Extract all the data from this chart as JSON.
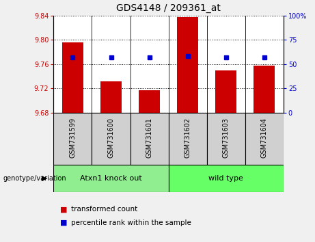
{
  "title": "GDS4148 / 209361_at",
  "samples": [
    "GSM731599",
    "GSM731600",
    "GSM731601",
    "GSM731602",
    "GSM731603",
    "GSM731604"
  ],
  "bar_values": [
    9.796,
    9.731,
    9.717,
    9.838,
    9.75,
    9.757
  ],
  "bar_bottom": 9.68,
  "percentile_values": [
    9.771,
    9.771,
    9.771,
    9.773,
    9.771,
    9.771
  ],
  "ylim_left": [
    9.68,
    9.84
  ],
  "yticks_left": [
    9.68,
    9.72,
    9.76,
    9.8,
    9.84
  ],
  "ytick_labels_left": [
    "9.68",
    "9.72",
    "9.76",
    "9.80",
    "9.84"
  ],
  "ylim_right": [
    0,
    100
  ],
  "yticks_right": [
    0,
    25,
    50,
    75,
    100
  ],
  "ytick_labels_right": [
    "0",
    "25",
    "50",
    "75",
    "100%"
  ],
  "bar_color": "#cc0000",
  "dot_color": "#0000cc",
  "group1_label": "Atxn1 knock out",
  "group2_label": "wild type",
  "group1_color": "#90ee90",
  "group2_color": "#66ff66",
  "group_label_prefix": "genotype/variation",
  "legend_bar_label": "transformed count",
  "legend_dot_label": "percentile rank within the sample",
  "left_tick_color": "#cc0000",
  "right_tick_color": "#0000cc",
  "background_color": "#f0f0f0",
  "plot_bg_color": "#ffffff",
  "label_box_color": "#d0d0d0",
  "bar_width": 0.55,
  "group1_indices": [
    0,
    1,
    2
  ],
  "group2_indices": [
    3,
    4,
    5
  ]
}
